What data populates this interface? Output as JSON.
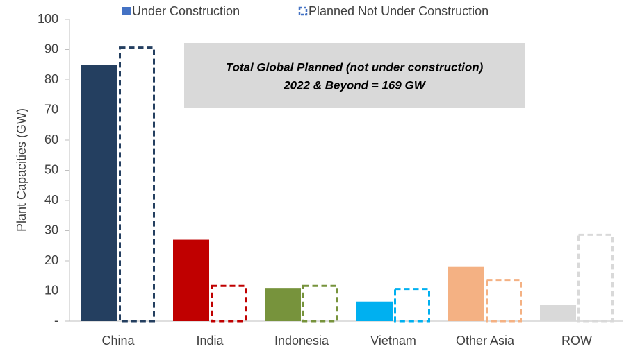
{
  "chart_data": {
    "type": "bar",
    "y_label": "Plant Capacities (GW)",
    "annotation": [
      "Total Global Planned (not under construction)",
      "2022 & Beyond = 169 GW"
    ],
    "categories": [
      "China",
      "India",
      "Indonesia",
      "Vietnam",
      "Other Asia",
      "ROW"
    ],
    "series": [
      {
        "name": "Under Construction",
        "color": "#4472c4",
        "style": "solid",
        "colors": [
          "#243f60",
          "#c00000",
          "#77933c",
          "#00b0f0",
          "#f4b183",
          "#d9d9d9"
        ],
        "values": [
          85,
          27,
          11,
          6.5,
          18,
          5.5
        ]
      },
      {
        "name": "Planned Not Under Construction",
        "color": "#4472c4",
        "style": "dashed",
        "colors": [
          "#243f60",
          "#c00000",
          "#77933c",
          "#00b0f0",
          "#f4b183",
          "#d9d9d9"
        ],
        "values": [
          91,
          12,
          12,
          11,
          14,
          29
        ]
      }
    ],
    "ylim": [
      0,
      100
    ],
    "yticks": [
      {
        "value": 0,
        "label": "-"
      },
      10,
      20,
      30,
      40,
      50,
      60,
      70,
      80,
      90,
      100
    ]
  }
}
